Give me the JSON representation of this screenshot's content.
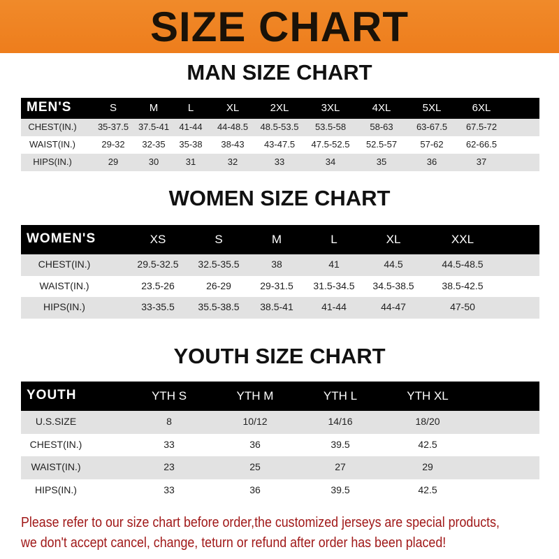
{
  "banner_title": "SIZE CHART",
  "men": {
    "title": "MAN SIZE CHART",
    "header": "MEN'S",
    "sizes": [
      "S",
      "M",
      "L",
      "XL",
      "2XL",
      "3XL",
      "4XL",
      "5XL",
      "6XL"
    ],
    "rows": [
      {
        "label": "CHEST(IN.)",
        "values": [
          "35-37.5",
          "37.5-41",
          "41-44",
          "44-48.5",
          "48.5-53.5",
          "53.5-58",
          "58-63",
          "63-67.5",
          "67.5-72"
        ]
      },
      {
        "label": "WAIST(IN.)",
        "values": [
          "29-32",
          "32-35",
          "35-38",
          "38-43",
          "43-47.5",
          "47.5-52.5",
          "52.5-57",
          "57-62",
          "62-66.5"
        ]
      },
      {
        "label": "HIPS(IN.)",
        "values": [
          "29",
          "30",
          "31",
          "32",
          "33",
          "34",
          "35",
          "36",
          "37"
        ]
      }
    ]
  },
  "women": {
    "title": "WOMEN SIZE CHART",
    "header": "WOMEN'S",
    "sizes": [
      "XS",
      "S",
      "M",
      "L",
      "XL",
      "XXL"
    ],
    "rows": [
      {
        "label": "CHEST(IN.)",
        "values": [
          "29.5-32.5",
          "32.5-35.5",
          "38",
          "41",
          "44.5",
          "44.5-48.5"
        ]
      },
      {
        "label": "WAIST(IN.)",
        "values": [
          "23.5-26",
          "26-29",
          "29-31.5",
          "31.5-34.5",
          "34.5-38.5",
          "38.5-42.5"
        ]
      },
      {
        "label": "HIPS(IN.)",
        "values": [
          "33-35.5",
          "35.5-38.5",
          "38.5-41",
          "41-44",
          "44-47",
          "47-50"
        ]
      }
    ]
  },
  "youth": {
    "title": "YOUTH SIZE CHART",
    "header": "YOUTH",
    "sizes": [
      "YTH S",
      "YTH M",
      "YTH L",
      "YTH XL"
    ],
    "rows": [
      {
        "label": "U.S.SIZE",
        "values": [
          "8",
          "10/12",
          "14/16",
          "18/20"
        ]
      },
      {
        "label": "CHEST(IN.)",
        "values": [
          "33",
          "36",
          "39.5",
          "42.5"
        ]
      },
      {
        "label": "WAIST(IN.)",
        "values": [
          "23",
          "25",
          "27",
          "29"
        ]
      },
      {
        "label": "HIPS(IN.)",
        "values": [
          "33",
          "36",
          "39.5",
          "42.5"
        ]
      }
    ]
  },
  "note": [
    "Please refer to our size chart before order,the customized jerseys are special products,",
    "we don't accept cancel, change, teturn or refund after order has been placed!"
  ]
}
